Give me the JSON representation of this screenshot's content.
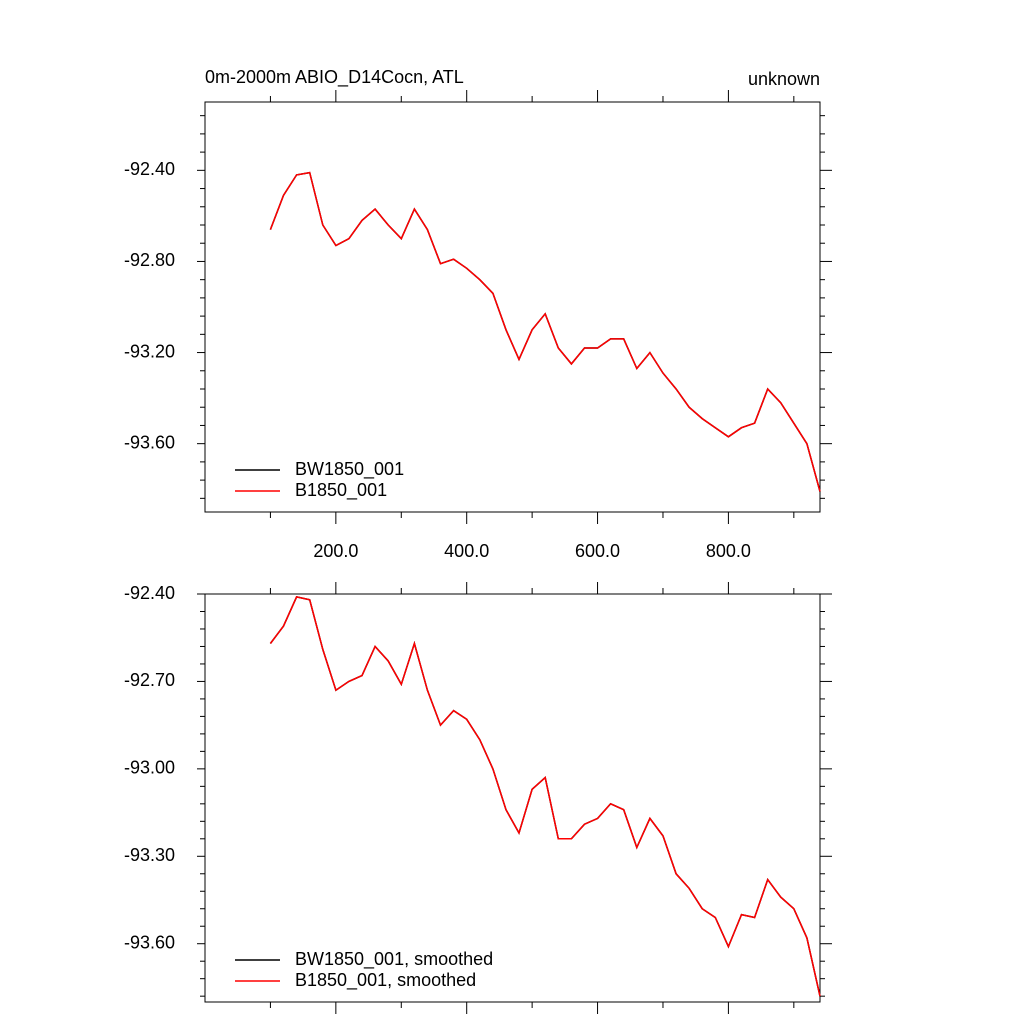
{
  "chart_data": [
    {
      "type": "line",
      "title": "0m-2000m ABIO_D14Cocn, ATL",
      "subtitle": "unknown",
      "x": [
        100,
        120,
        140,
        160,
        180,
        200,
        220,
        240,
        260,
        280,
        300,
        320,
        340,
        360,
        380,
        400,
        420,
        440,
        460,
        480,
        500,
        520,
        540,
        560,
        580,
        600,
        620,
        640,
        660,
        680,
        700,
        720,
        740,
        760,
        780,
        800,
        820,
        840,
        860,
        880,
        900,
        920,
        940
      ],
      "series": [
        {
          "name": "BW1850_001",
          "color": "#000000",
          "values": [
            -92.66,
            -92.51,
            -92.42,
            -92.41,
            -92.64,
            -92.73,
            -92.7,
            -92.62,
            -92.57,
            -92.64,
            -92.7,
            -92.57,
            -92.66,
            -92.81,
            -92.79,
            -92.83,
            -92.88,
            -92.94,
            -93.1,
            -93.23,
            -93.1,
            -93.03,
            -93.18,
            -93.25,
            -93.18,
            -93.18,
            -93.14,
            -93.14,
            -93.27,
            -93.2,
            -93.29,
            -93.36,
            -93.44,
            -93.49,
            -93.53,
            -93.57,
            -93.53,
            -93.51,
            -93.36,
            -93.42,
            -93.51,
            -93.6,
            -93.81
          ]
        },
        {
          "name": "B1850_001",
          "color": "#ff0000",
          "values": [
            -92.66,
            -92.51,
            -92.42,
            -92.41,
            -92.64,
            -92.73,
            -92.7,
            -92.62,
            -92.57,
            -92.64,
            -92.7,
            -92.57,
            -92.66,
            -92.81,
            -92.79,
            -92.83,
            -92.88,
            -92.94,
            -93.1,
            -93.23,
            -93.1,
            -93.03,
            -93.18,
            -93.25,
            -93.18,
            -93.18,
            -93.14,
            -93.14,
            -93.27,
            -93.2,
            -93.29,
            -93.36,
            -93.44,
            -93.49,
            -93.53,
            -93.57,
            -93.53,
            -93.51,
            -93.36,
            -93.42,
            -93.51,
            -93.6,
            -93.81
          ]
        }
      ],
      "xlim": [
        0,
        940
      ],
      "xticks": [
        {
          "value": 200,
          "label": "200.0"
        },
        {
          "value": 400,
          "label": "400.0"
        },
        {
          "value": 600,
          "label": "600.0"
        },
        {
          "value": 800,
          "label": "800.0"
        }
      ],
      "ylim": [
        -93.9,
        -92.1
      ],
      "yticks": [
        {
          "value": -92.4,
          "label": "-92.40"
        },
        {
          "value": -92.8,
          "label": "-92.80"
        },
        {
          "value": -93.2,
          "label": "-93.20"
        },
        {
          "value": -93.6,
          "label": "-93.60"
        }
      ],
      "legend": "lower left"
    },
    {
      "type": "line",
      "x": [
        100,
        120,
        140,
        160,
        180,
        200,
        220,
        240,
        260,
        280,
        300,
        320,
        340,
        360,
        380,
        400,
        420,
        440,
        460,
        480,
        500,
        520,
        540,
        560,
        580,
        600,
        620,
        640,
        660,
        680,
        700,
        720,
        740,
        760,
        780,
        800,
        820,
        840,
        860,
        880,
        900,
        920,
        940
      ],
      "series": [
        {
          "name": "BW1850_001, smoothed",
          "color": "#000000",
          "values": [
            -92.57,
            -92.51,
            -92.41,
            -92.42,
            -92.59,
            -92.73,
            -92.7,
            -92.68,
            -92.58,
            -92.63,
            -92.71,
            -92.57,
            -92.73,
            -92.85,
            -92.8,
            -92.83,
            -92.9,
            -93.0,
            -93.14,
            -93.22,
            -93.07,
            -93.03,
            -93.24,
            -93.24,
            -93.19,
            -93.17,
            -93.12,
            -93.14,
            -93.27,
            -93.17,
            -93.23,
            -93.36,
            -93.41,
            -93.48,
            -93.51,
            -93.61,
            -93.5,
            -93.51,
            -93.38,
            -93.44,
            -93.48,
            -93.58,
            -93.78
          ]
        },
        {
          "name": "B1850_001, smoothed",
          "color": "#ff0000",
          "values": [
            -92.57,
            -92.51,
            -92.41,
            -92.42,
            -92.59,
            -92.73,
            -92.7,
            -92.68,
            -92.58,
            -92.63,
            -92.71,
            -92.57,
            -92.73,
            -92.85,
            -92.8,
            -92.83,
            -92.9,
            -93.0,
            -93.14,
            -93.22,
            -93.07,
            -93.03,
            -93.24,
            -93.24,
            -93.19,
            -93.17,
            -93.12,
            -93.14,
            -93.27,
            -93.17,
            -93.23,
            -93.36,
            -93.41,
            -93.48,
            -93.51,
            -93.61,
            -93.5,
            -93.51,
            -93.38,
            -93.44,
            -93.48,
            -93.58,
            -93.78
          ]
        }
      ],
      "xlim": [
        0,
        940
      ],
      "ylim": [
        -93.8,
        -92.4
      ],
      "yticks": [
        {
          "value": -92.4,
          "label": "-92.40"
        },
        {
          "value": -92.7,
          "label": "-92.70"
        },
        {
          "value": -93.0,
          "label": "-93.00"
        },
        {
          "value": -93.3,
          "label": "-93.30"
        },
        {
          "value": -93.6,
          "label": "-93.60"
        }
      ],
      "legend": "lower left"
    }
  ]
}
